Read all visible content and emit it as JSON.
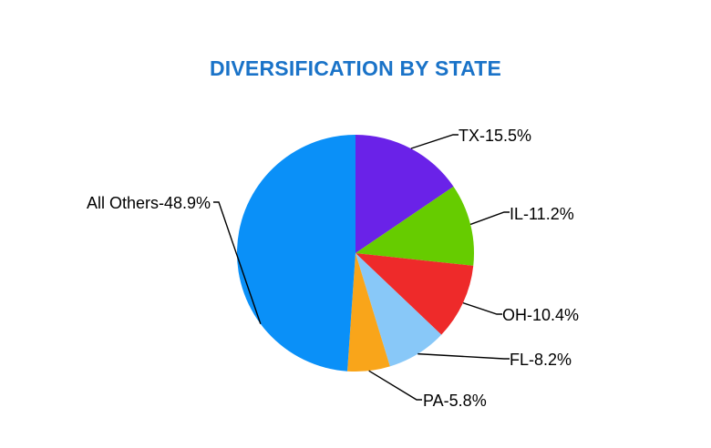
{
  "chart_data": {
    "type": "pie",
    "title": "DIVERSIFICATION BY STATE",
    "slices": [
      {
        "label": "TX-15.5%",
        "name": "TX",
        "value": 15.5,
        "color": "#6a22e8"
      },
      {
        "label": "IL-11.2%",
        "name": "IL",
        "value": 11.2,
        "color": "#66cc00"
      },
      {
        "label": "OH-10.4%",
        "name": "OH",
        "value": 10.4,
        "color": "#ee2a2a"
      },
      {
        "label": "FL-8.2%",
        "name": "FL",
        "value": 8.2,
        "color": "#88c8f8"
      },
      {
        "label": "PA-5.8%",
        "name": "PA",
        "value": 5.8,
        "color": "#f9a51a"
      },
      {
        "label": "All Others-48.9%",
        "name": "All Others",
        "value": 48.9,
        "color": "#0a90f8"
      }
    ],
    "start": "top",
    "direction": "clockwise",
    "legend": "none",
    "title_color": "#1a73c8"
  }
}
